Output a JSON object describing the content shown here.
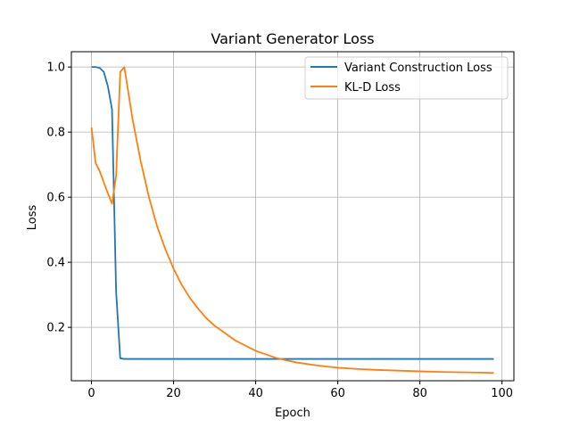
{
  "chart_data": {
    "type": "line",
    "title": "Variant Generator Loss",
    "xlabel": "Epoch",
    "ylabel": "Loss",
    "xlim": [
      -4.9,
      102.9
    ],
    "ylim": [
      0.036,
      1.047
    ],
    "xticks": [
      0,
      20,
      40,
      60,
      80,
      100
    ],
    "yticks": [
      0.2,
      0.4,
      0.6,
      0.8,
      1.0
    ],
    "xtick_labels": [
      "0",
      "20",
      "40",
      "60",
      "80",
      "100"
    ],
    "ytick_labels": [
      "0.2",
      "0.4",
      "0.6",
      "0.8",
      "1.0"
    ],
    "grid": true,
    "legend": "top-right",
    "series": [
      {
        "name": "Variant Construction Loss",
        "color": "#1f77b4",
        "x": [
          0,
          1,
          2,
          3,
          4,
          5,
          6,
          7,
          8,
          10,
          15,
          20,
          30,
          40,
          50,
          60,
          70,
          80,
          90,
          98
        ],
        "y": [
          1.0,
          1.0,
          0.997,
          0.985,
          0.94,
          0.87,
          0.31,
          0.105,
          0.103,
          0.103,
          0.103,
          0.103,
          0.103,
          0.103,
          0.103,
          0.103,
          0.103,
          0.103,
          0.103,
          0.103
        ]
      },
      {
        "name": "KL-D Loss",
        "color": "#ff7f0e",
        "x": [
          0,
          1,
          2,
          3,
          4,
          5,
          6,
          7,
          8,
          10,
          12,
          14,
          16,
          18,
          20,
          22,
          24,
          26,
          28,
          30,
          35,
          40,
          45,
          50,
          55,
          60,
          65,
          70,
          75,
          80,
          85,
          90,
          95,
          98
        ],
        "y": [
          0.815,
          0.705,
          0.68,
          0.645,
          0.612,
          0.58,
          0.665,
          0.985,
          1.0,
          0.84,
          0.71,
          0.6,
          0.51,
          0.44,
          0.38,
          0.33,
          0.29,
          0.257,
          0.228,
          0.205,
          0.16,
          0.128,
          0.106,
          0.092,
          0.083,
          0.076,
          0.072,
          0.069,
          0.067,
          0.065,
          0.063,
          0.062,
          0.061,
          0.06
        ]
      }
    ]
  }
}
